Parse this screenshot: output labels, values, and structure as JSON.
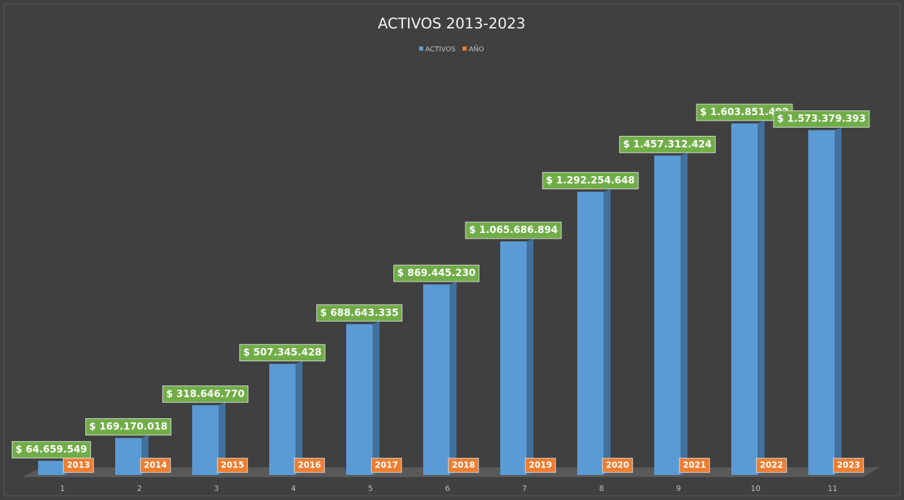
{
  "chart_data": {
    "type": "bar3d",
    "title": "ACTIVOS 2013-2023",
    "categories": [
      "1",
      "2",
      "3",
      "4",
      "5",
      "6",
      "7",
      "8",
      "9",
      "10",
      "11"
    ],
    "series": [
      {
        "name": "ACTIVOS",
        "color": "#5b9bd5",
        "values": [
          64659549,
          169170018,
          318646770,
          507345428,
          688643335,
          869445230,
          1065686894,
          1292254648,
          1457312424,
          1603851492,
          1573379393
        ],
        "value_labels": [
          "$ 64.659.549",
          "$ 169.170.018",
          "$ 318.646.770",
          "$ 507.345.428",
          "$ 688.643.335",
          "$ 869.445.230",
          "$ 1.065.686.894",
          "$ 1.292.254.648",
          "$ 1.457.312.424",
          "$ 1.603.851.492",
          "$ 1.573.379.393"
        ]
      },
      {
        "name": "AÑO",
        "color": "#ed7d31",
        "values": [
          2013,
          2014,
          2015,
          2016,
          2017,
          2018,
          2019,
          2020,
          2021,
          2022,
          2023
        ]
      }
    ],
    "ylim": [
      0,
      1800000000
    ],
    "legend": "top"
  }
}
